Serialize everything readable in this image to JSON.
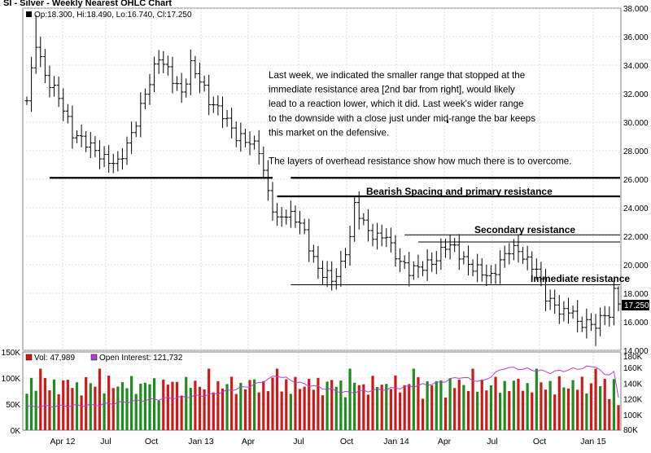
{
  "chart_data": [
    {
      "type": "ohlc",
      "title": "SI - Silver - Weekly Nearest OHLC Chart",
      "ohlc_header": {
        "open": "Op:18.300",
        "high": "Hi:18.490",
        "low": "Lo:16.740",
        "close": "Cl:17.250"
      },
      "last_price_label": "17.250",
      "ylim": [
        14,
        38
      ],
      "y_ticks": [
        "14.000",
        "16.000",
        "18.000",
        "20.000",
        "22.000",
        "24.000",
        "26.000",
        "28.000",
        "30.000",
        "32.000",
        "34.000",
        "36.000",
        "38.000"
      ],
      "x_ticks": [
        "Apr 12",
        "Jul",
        "Oct",
        "Jan 13",
        "Apr",
        "Jul",
        "Oct",
        "Jan 14",
        "Apr",
        "Jul",
        "Oct",
        "Jan 15"
      ],
      "anchors": [
        {
          "i": 0,
          "c": 31.5
        },
        {
          "i": 2,
          "c": 35.6
        },
        {
          "i": 4,
          "c": 33.2
        },
        {
          "i": 7,
          "c": 31.8
        },
        {
          "i": 10,
          "c": 29.2
        },
        {
          "i": 13,
          "c": 28.6
        },
        {
          "i": 17,
          "c": 27.4
        },
        {
          "i": 20,
          "c": 27.1
        },
        {
          "i": 23,
          "c": 29.1
        },
        {
          "i": 26,
          "c": 32.0
        },
        {
          "i": 29,
          "c": 34.6
        },
        {
          "i": 31,
          "c": 33.6
        },
        {
          "i": 34,
          "c": 32.0
        },
        {
          "i": 36,
          "c": 34.0
        },
        {
          "i": 38,
          "c": 33.0
        },
        {
          "i": 40,
          "c": 31.5
        },
        {
          "i": 43,
          "c": 30.6
        },
        {
          "i": 46,
          "c": 29.0
        },
        {
          "i": 49,
          "c": 28.6
        },
        {
          "i": 51,
          "c": 28.1
        },
        {
          "i": 53,
          "c": 25.0
        },
        {
          "i": 55,
          "c": 23.1
        },
        {
          "i": 57,
          "c": 23.6
        },
        {
          "i": 60,
          "c": 23.0
        },
        {
          "i": 62,
          "c": 21.3
        },
        {
          "i": 64,
          "c": 19.6
        },
        {
          "i": 66,
          "c": 19.3
        },
        {
          "i": 67,
          "c": 18.9
        },
        {
          "i": 69,
          "c": 19.9
        },
        {
          "i": 71,
          "c": 22.0
        },
        {
          "i": 72,
          "c": 24.1
        },
        {
          "i": 73,
          "c": 23.6
        },
        {
          "i": 75,
          "c": 22.3
        },
        {
          "i": 77,
          "c": 21.9
        },
        {
          "i": 79,
          "c": 22.1
        },
        {
          "i": 80,
          "c": 21.2
        },
        {
          "i": 82,
          "c": 20.2
        },
        {
          "i": 84,
          "c": 19.6
        },
        {
          "i": 86,
          "c": 19.8
        },
        {
          "i": 88,
          "c": 20.0
        },
        {
          "i": 90,
          "c": 20.4
        },
        {
          "i": 92,
          "c": 21.4
        },
        {
          "i": 94,
          "c": 21.2
        },
        {
          "i": 96,
          "c": 20.3
        },
        {
          "i": 98,
          "c": 19.8
        },
        {
          "i": 100,
          "c": 19.5
        },
        {
          "i": 102,
          "c": 19.1
        },
        {
          "i": 104,
          "c": 20.2
        },
        {
          "i": 106,
          "c": 21.1
        },
        {
          "i": 108,
          "c": 21.0
        },
        {
          "i": 110,
          "c": 20.2
        },
        {
          "i": 112,
          "c": 19.7
        },
        {
          "i": 114,
          "c": 17.8
        },
        {
          "i": 116,
          "c": 17.1
        },
        {
          "i": 118,
          "c": 16.6
        },
        {
          "i": 120,
          "c": 16.9
        },
        {
          "i": 121,
          "c": 15.7
        },
        {
          "i": 123,
          "c": 16.1
        },
        {
          "i": 124,
          "c": 15.6
        },
        {
          "i": 126,
          "c": 16.2
        },
        {
          "i": 128,
          "c": 16.6
        },
        {
          "i": 129,
          "c": 18.0
        },
        {
          "i": 130,
          "c": 17.25
        }
      ],
      "resistance_lines": [
        {
          "label": "",
          "y": 26.1,
          "i0": 5,
          "i1": 54,
          "style": "thick"
        },
        {
          "label": "",
          "y": 26.1,
          "i0": 58,
          "i1": 131,
          "style": "thick"
        },
        {
          "label": "Bearish Spacing and primary resistance",
          "y": 24.8,
          "i0": 55,
          "i1": 131,
          "style": "thick"
        },
        {
          "label": "",
          "y": 22.1,
          "i0": 83,
          "i1": 131,
          "style": "thin"
        },
        {
          "label": "Secondary resistance",
          "y": 21.6,
          "i0": 86,
          "i1": 131,
          "style": "thin"
        },
        {
          "label": "Immediate resistance",
          "y": 18.6,
          "i0": 58,
          "i1": 131,
          "style": "thin"
        }
      ]
    },
    {
      "type": "bar",
      "title": "Volume / Open Interest",
      "volume_label": "Vol: 47,989",
      "oi_label": "Open Interest: 121,732",
      "volume_ylim": [
        0,
        150000
      ],
      "volume_ticks": [
        "0K",
        "50K",
        "100K",
        "150K"
      ],
      "oi_ylim": [
        80000,
        180000
      ],
      "oi_ticks": [
        "80K",
        "100K",
        "120K",
        "140K",
        "160K",
        "180K"
      ],
      "oi_anchors": [
        {
          "i": 0,
          "v": 110000
        },
        {
          "i": 15,
          "v": 112000
        },
        {
          "i": 25,
          "v": 118000
        },
        {
          "i": 40,
          "v": 125000
        },
        {
          "i": 50,
          "v": 138000
        },
        {
          "i": 55,
          "v": 150000
        },
        {
          "i": 60,
          "v": 140000
        },
        {
          "i": 70,
          "v": 128000
        },
        {
          "i": 80,
          "v": 133000
        },
        {
          "i": 90,
          "v": 140000
        },
        {
          "i": 95,
          "v": 148000
        },
        {
          "i": 100,
          "v": 142000
        },
        {
          "i": 105,
          "v": 160000
        },
        {
          "i": 110,
          "v": 158000
        },
        {
          "i": 115,
          "v": 154000
        },
        {
          "i": 120,
          "v": 158000
        },
        {
          "i": 125,
          "v": 162000
        },
        {
          "i": 127,
          "v": 150000
        },
        {
          "i": 129,
          "v": 155000
        },
        {
          "i": 130,
          "v": 122000
        }
      ]
    }
  ],
  "annotation": {
    "lines": [
      "Last week, we indicated the smaller range that stopped at the",
      "immediate resistance area [2nd bar from right], would likely",
      "lead to a reaction lower, which it did.  Last week's wider range",
      "to the downside with a close just under mid-range the bar keeps",
      "this market on the defensive.",
      "",
      "The layers of overhead resistance show how much there is to overcome."
    ]
  },
  "colors": {
    "up": "#1e8c1e",
    "down": "#d01818",
    "oi": "#b040d8",
    "grid": "#c8c8c8",
    "price_tag_bg": "#000000",
    "price_tag_text": "#ffffff"
  }
}
